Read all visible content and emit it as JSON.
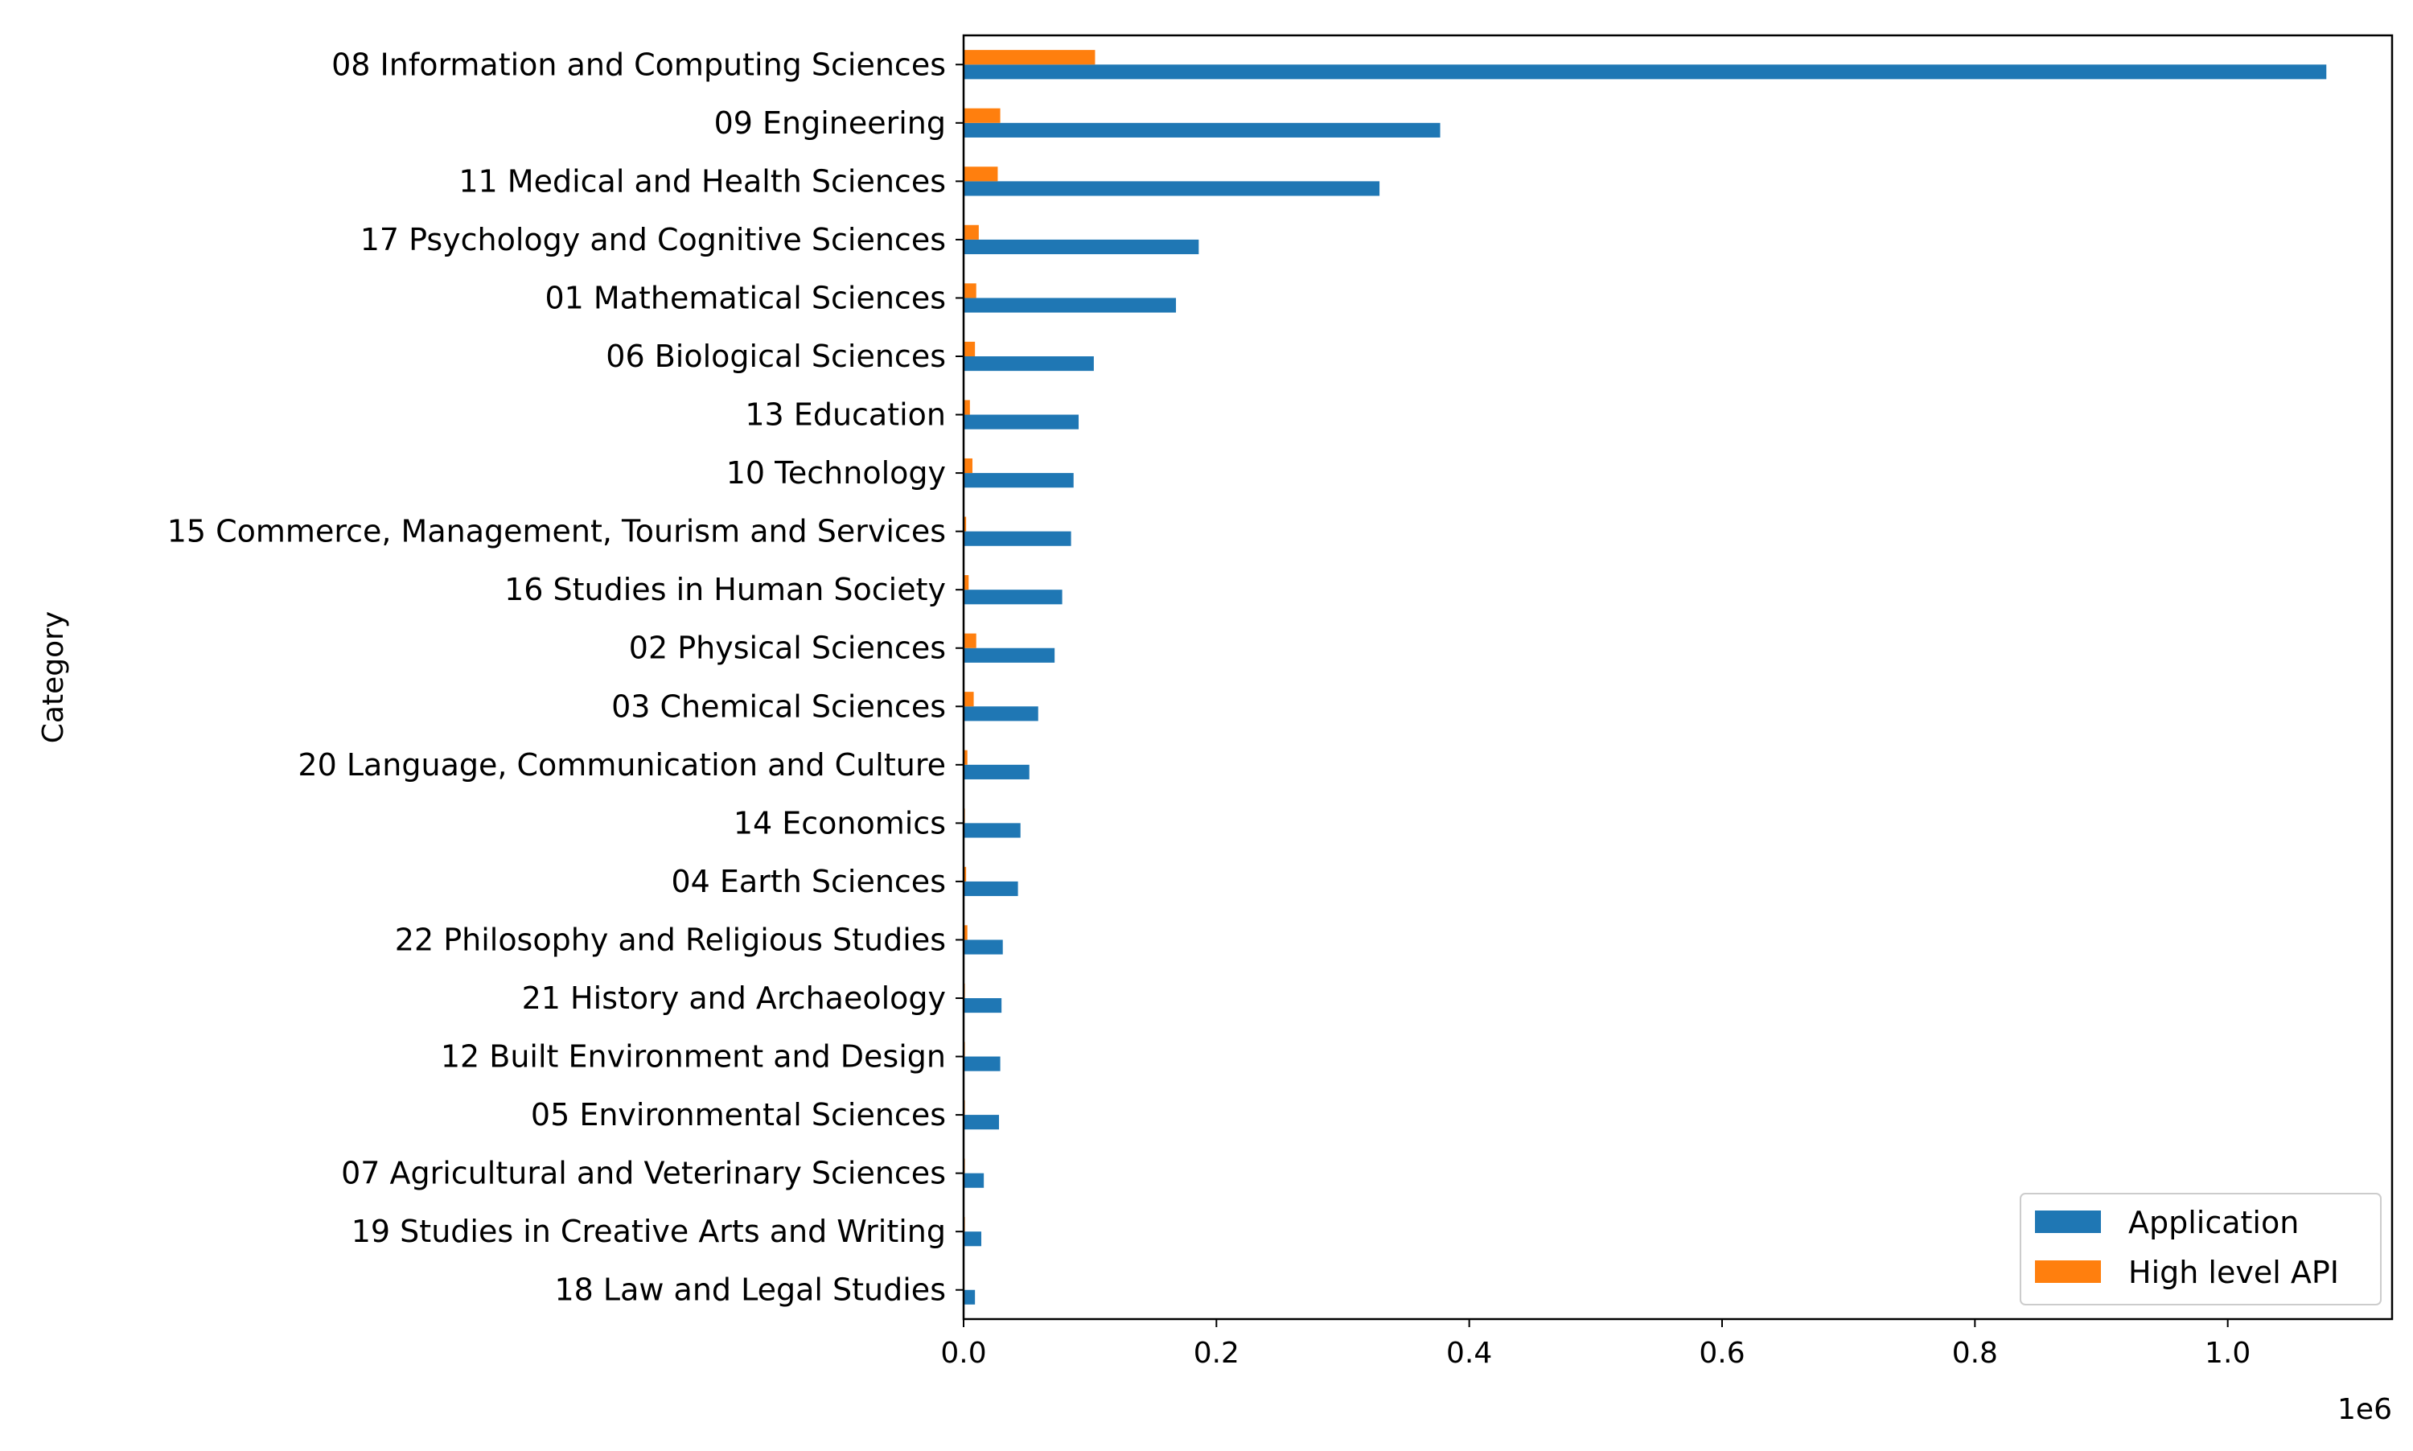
{
  "chart_data": {
    "type": "bar",
    "orientation": "horizontal",
    "ylabel": "Category",
    "xlabel": "",
    "x_offset_text": "1e6",
    "xlim": [
      0,
      1130000
    ],
    "x_ticks": [
      0,
      200000,
      400000,
      600000,
      800000,
      1000000
    ],
    "x_tick_labels": [
      "0.0",
      "0.2",
      "0.4",
      "0.6",
      "0.8",
      "1.0"
    ],
    "grid": false,
    "legend_position": "lower-right",
    "categories": [
      "08 Information and Computing Sciences",
      "09 Engineering",
      "11 Medical and Health Sciences",
      "17 Psychology and Cognitive Sciences",
      "01 Mathematical Sciences",
      "06 Biological Sciences",
      "13 Education",
      "10 Technology",
      "15 Commerce, Management, Tourism and Services",
      "16 Studies in Human Society",
      "02 Physical Sciences",
      "03 Chemical Sciences",
      "20 Language, Communication and Culture",
      "14 Economics",
      "04 Earth Sciences",
      "22 Philosophy and Religious Studies",
      "21 History and Archaeology",
      "12 Built Environment and Design",
      "05 Environmental Sciences",
      "07 Agricultural and Veterinary Sciences",
      "19 Studies in Creative Arts and Writing",
      "18 Law and Legal Studies"
    ],
    "series": [
      {
        "name": "Application",
        "color": "#1f77b4",
        "values": [
          1078000,
          377000,
          329000,
          186000,
          168000,
          103000,
          91000,
          87000,
          85000,
          78000,
          72000,
          59000,
          52000,
          45000,
          43000,
          31000,
          30000,
          29000,
          28000,
          16000,
          14000,
          9000
        ]
      },
      {
        "name": "High level API",
        "color": "#ff7f0e",
        "values": [
          104000,
          29000,
          27000,
          12000,
          10000,
          9000,
          5000,
          7000,
          2000,
          4000,
          10000,
          8000,
          3000,
          1000,
          2000,
          3000,
          1000,
          1000,
          1000,
          1000,
          1000,
          500
        ]
      }
    ]
  }
}
